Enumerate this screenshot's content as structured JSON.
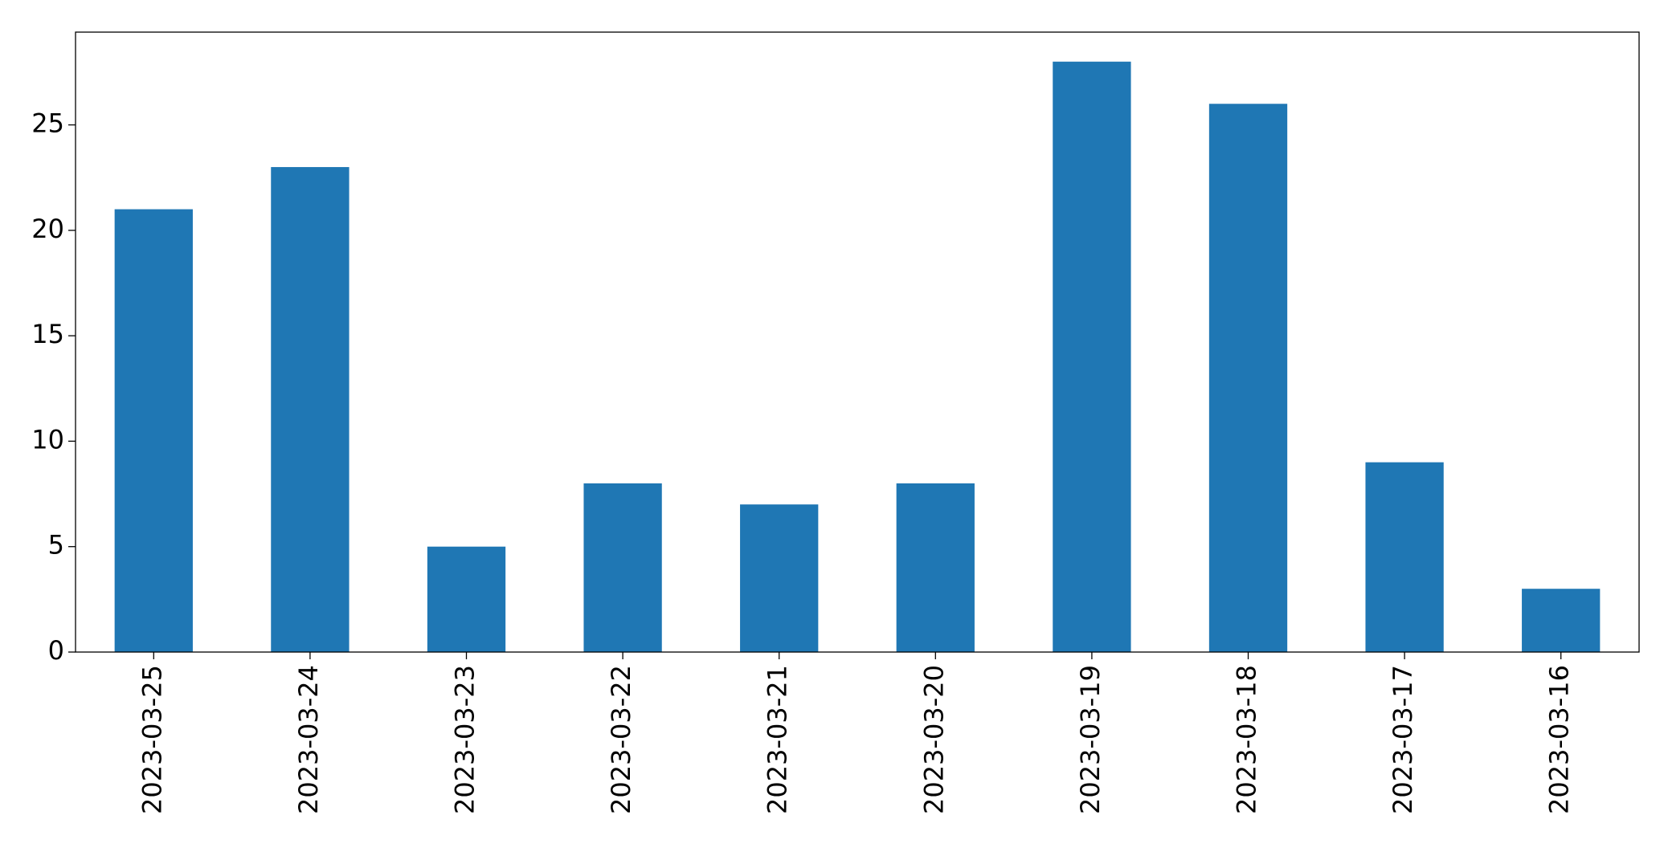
{
  "chart_data": {
    "type": "bar",
    "categories": [
      "2023-03-25",
      "2023-03-24",
      "2023-03-23",
      "2023-03-22",
      "2023-03-21",
      "2023-03-20",
      "2023-03-19",
      "2023-03-18",
      "2023-03-17",
      "2023-03-16"
    ],
    "values": [
      21,
      23,
      5,
      8,
      7,
      8,
      28,
      26,
      9,
      3
    ],
    "color": "#1f77b4",
    "ylim": [
      0,
      29.4
    ],
    "yticks": [
      0,
      5,
      10,
      15,
      20,
      25
    ],
    "grid": false
  }
}
